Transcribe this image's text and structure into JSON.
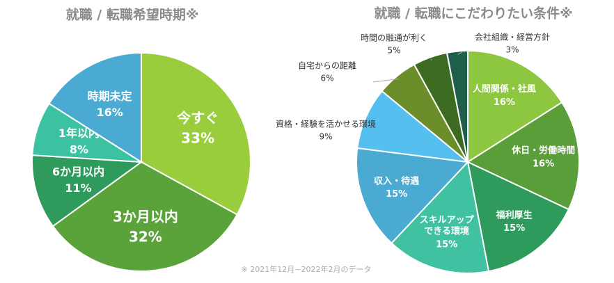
{
  "chart_data": [
    {
      "type": "pie",
      "title": "就職 / 転職希望時期※",
      "categories": [
        "今すぐ",
        "3か月以内",
        "6か月以内",
        "1年以内",
        "時期未定"
      ],
      "values": [
        33,
        32,
        11,
        8,
        16
      ],
      "value_labels": [
        "33%",
        "32%",
        "11%",
        "8%",
        "16%"
      ],
      "colors": [
        "#9acd3c",
        "#5aa33a",
        "#2e9a5c",
        "#3cc2a2",
        "#4aaad2"
      ]
    },
    {
      "type": "pie",
      "title": "就職 / 転職にこだわりたい条件※",
      "categories": [
        "人間関係・社風",
        "休日・労働時間",
        "福利厚生",
        "スキルアップ\nできる環境",
        "収入・待遇",
        "資格・経験を活かせる環境",
        "自宅からの距離",
        "時間の融通が利く",
        "会社組織・経営方針"
      ],
      "values": [
        16,
        16,
        15,
        15,
        15,
        9,
        6,
        5,
        3
      ],
      "value_labels": [
        "16%",
        "16%",
        "15%",
        "15%",
        "15%",
        "9%",
        "6%",
        "5%",
        "3%"
      ],
      "colors": [
        "#8dc63f",
        "#5a9e3a",
        "#2e9a5c",
        "#40c2a2",
        "#4aaad2",
        "#55c0f0",
        "#6b8e2a",
        "#3e6b22",
        "#1f5e4a"
      ]
    }
  ],
  "footnote": "※ 2021年12月~2022年2月のデータ"
}
